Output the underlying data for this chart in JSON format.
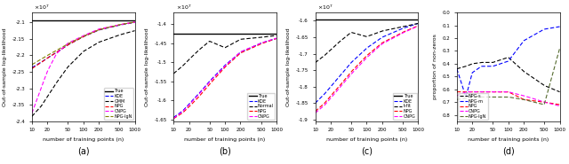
{
  "fig_width": 6.4,
  "fig_height": 1.85,
  "xlabel": "number of training points (n)",
  "scale": 10000000.0,
  "panel_a": {
    "ylabel": "Out-of-sample log-likelihood",
    "ylim_raw": [
      -2.4,
      -2.07
    ],
    "yticks_raw": [
      -2.4,
      -2.35,
      -2.3,
      -2.25,
      -2.2,
      -2.15,
      -2.1
    ],
    "true_raw": -2.093,
    "kde": [
      -2.237,
      -2.221,
      -2.208,
      -2.191,
      -2.168,
      -2.143,
      -2.123,
      -2.108,
      -2.1
    ],
    "gmm": [
      -2.385,
      -2.355,
      -2.325,
      -2.283,
      -2.235,
      -2.188,
      -2.16,
      -2.138,
      -2.125
    ],
    "npg": [
      -2.24,
      -2.222,
      -2.208,
      -2.191,
      -2.168,
      -2.143,
      -2.122,
      -2.107,
      -2.099
    ],
    "cnpg": [
      -2.375,
      -2.3,
      -2.248,
      -2.195,
      -2.163,
      -2.14,
      -2.12,
      -2.107,
      -2.099
    ],
    "npglgn": [
      -2.228,
      -2.212,
      -2.2,
      -2.185,
      -2.165,
      -2.142,
      -2.122,
      -2.107,
      -2.099
    ]
  },
  "panel_b": {
    "ylabel": "Out-of-sample log-likelihood",
    "ylim_raw": [
      -1.655,
      -1.37
    ],
    "yticks_raw": [
      -1.65,
      -1.6,
      -1.55,
      -1.5,
      -1.45,
      -1.4
    ],
    "true_raw": -1.425,
    "kde": [
      -1.645,
      -1.628,
      -1.61,
      -1.585,
      -1.55,
      -1.508,
      -1.474,
      -1.45,
      -1.438
    ],
    "normal": [
      -1.53,
      -1.51,
      -1.493,
      -1.47,
      -1.445,
      -1.462,
      -1.44,
      -1.435,
      -1.43
    ],
    "npg": [
      -1.648,
      -1.633,
      -1.617,
      -1.593,
      -1.558,
      -1.513,
      -1.476,
      -1.452,
      -1.438
    ],
    "cnpg": [
      -1.647,
      -1.63,
      -1.612,
      -1.587,
      -1.552,
      -1.51,
      -1.473,
      -1.45,
      -1.437
    ]
  },
  "panel_c": {
    "ylabel": "Out-of-sample log-likelihood",
    "ylim_raw": [
      -1.905,
      -1.575
    ],
    "yticks_raw": [
      -1.9,
      -1.85,
      -1.8,
      -1.75,
      -1.7,
      -1.65,
      -1.6
    ],
    "true_raw": -1.597,
    "kde": [
      -1.85,
      -1.823,
      -1.8,
      -1.768,
      -1.727,
      -1.683,
      -1.65,
      -1.623,
      -1.608
    ],
    "tfit": [
      -1.727,
      -1.706,
      -1.688,
      -1.663,
      -1.635,
      -1.648,
      -1.631,
      -1.618,
      -1.608
    ],
    "npg": [
      -1.875,
      -1.851,
      -1.828,
      -1.797,
      -1.755,
      -1.706,
      -1.667,
      -1.635,
      -1.615
    ],
    "cnpg": [
      -1.88,
      -1.857,
      -1.835,
      -1.803,
      -1.762,
      -1.712,
      -1.67,
      -1.637,
      -1.616
    ]
  },
  "panel_d": {
    "ylabel": "proportion of non-zeros",
    "ylim": [
      0.0,
      0.85
    ],
    "yticks": [
      0.0,
      0.1,
      0.2,
      0.3,
      0.4,
      0.5,
      0.6,
      0.7,
      0.8
    ],
    "npg_s": [
      0.44,
      0.42,
      0.4,
      0.39,
      0.39,
      0.35,
      0.46,
      0.57,
      0.62
    ],
    "npg_m": [
      0.44,
      0.66,
      0.47,
      0.42,
      0.42,
      0.38,
      0.22,
      0.13,
      0.11
    ],
    "npg": [
      0.62,
      0.62,
      0.62,
      0.62,
      0.62,
      0.62,
      0.68,
      0.7,
      0.72
    ],
    "cnpg": [
      0.65,
      0.62,
      0.62,
      0.62,
      0.62,
      0.62,
      0.65,
      0.7,
      0.73
    ],
    "npglgn": [
      0.68,
      0.67,
      0.66,
      0.66,
      0.66,
      0.66,
      0.68,
      0.72,
      0.28
    ]
  },
  "x_vals": [
    10,
    15,
    20,
    30,
    50,
    100,
    200,
    500,
    1000
  ]
}
